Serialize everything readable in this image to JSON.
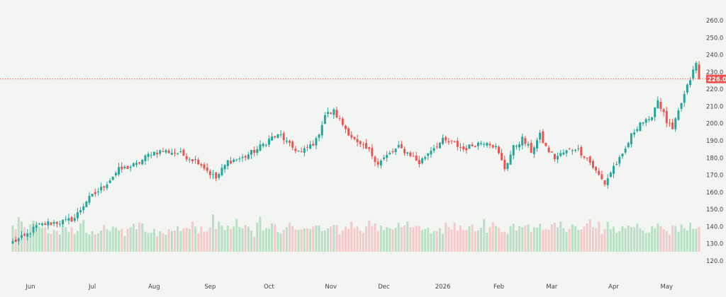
{
  "colors": {
    "background": "#f2f5f2",
    "up": "#26a69a",
    "down": "#ef5350",
    "up_volume": "#b9dfc4",
    "down_volume": "#f6c9c9",
    "price_line": "#ef5350",
    "axis_text": "#444444"
  },
  "chart_data": {
    "type": "candlestick",
    "y_axis": {
      "position": "right",
      "range": [
        115,
        265
      ],
      "ticks": [
        "120.0",
        "130.0",
        "140.0",
        "150.0",
        "160.0",
        "170.0",
        "180.0",
        "190.0",
        "200.0",
        "210.0",
        "220.0",
        "230.0",
        "240.0",
        "250.0",
        "260.0"
      ],
      "tick_values": [
        120,
        130,
        140,
        150,
        160,
        170,
        180,
        190,
        200,
        210,
        220,
        230,
        240,
        250,
        260
      ]
    },
    "x_axis": {
      "labels": [
        "Jun",
        "Jul",
        "Aug",
        "Sep",
        "Oct",
        "Nov",
        "Dec",
        "2026",
        "Feb",
        "Mar",
        "Apr",
        "May"
      ],
      "label_bar_index": [
        6,
        27,
        48,
        67,
        87,
        108,
        126,
        146,
        165,
        183,
        204,
        222
      ]
    },
    "last_price": {
      "value": 226.0,
      "label": "226.0"
    },
    "volume_band": {
      "range_low": 0,
      "range_high": 100
    },
    "bar_count": 234,
    "trend_anchors": [
      [
        0,
        131
      ],
      [
        4,
        134
      ],
      [
        8,
        140
      ],
      [
        12,
        142
      ],
      [
        18,
        143
      ],
      [
        21,
        145
      ],
      [
        25,
        155
      ],
      [
        30,
        162
      ],
      [
        36,
        173
      ],
      [
        42,
        176
      ],
      [
        47,
        183
      ],
      [
        51,
        184
      ],
      [
        56,
        183
      ],
      [
        60,
        180
      ],
      [
        63,
        178
      ],
      [
        67,
        171
      ],
      [
        69,
        168
      ],
      [
        73,
        178
      ],
      [
        78,
        180
      ],
      [
        83,
        185
      ],
      [
        88,
        192
      ],
      [
        91,
        193
      ],
      [
        94,
        187
      ],
      [
        98,
        183
      ],
      [
        103,
        190
      ],
      [
        106,
        205
      ],
      [
        109,
        207
      ],
      [
        113,
        197
      ],
      [
        117,
        188
      ],
      [
        121,
        184
      ],
      [
        124,
        177
      ],
      [
        127,
        181
      ],
      [
        131,
        186
      ],
      [
        135,
        182
      ],
      [
        138,
        177
      ],
      [
        142,
        185
      ],
      [
        146,
        190
      ],
      [
        150,
        188
      ],
      [
        153,
        185
      ],
      [
        157,
        188
      ],
      [
        161,
        190
      ],
      [
        164,
        186
      ],
      [
        167,
        174
      ],
      [
        170,
        186
      ],
      [
        173,
        191
      ],
      [
        176,
        184
      ],
      [
        179,
        193
      ],
      [
        181,
        186
      ],
      [
        184,
        180
      ],
      [
        187,
        183
      ],
      [
        191,
        186
      ],
      [
        195,
        180
      ],
      [
        198,
        172
      ],
      [
        201,
        165
      ],
      [
        204,
        175
      ],
      [
        207,
        181
      ],
      [
        210,
        193
      ],
      [
        213,
        201
      ],
      [
        216,
        201
      ],
      [
        219,
        214
      ],
      [
        222,
        201
      ],
      [
        224,
        196
      ],
      [
        227,
        212
      ],
      [
        230,
        226
      ],
      [
        232,
        235
      ],
      [
        233,
        226
      ]
    ],
    "volume_values": [
      47,
      40,
      62,
      54,
      44,
      33,
      49,
      56,
      51,
      45,
      43,
      44,
      33,
      32,
      39,
      37,
      31,
      46,
      44,
      35,
      44,
      32,
      37,
      51,
      57,
      34,
      31,
      37,
      31,
      33,
      38,
      48,
      40,
      37,
      45,
      43,
      38,
      41,
      28,
      41,
      44,
      50,
      40,
      52,
      51,
      36,
      34,
      34,
      41,
      28,
      37,
      33,
      30,
      40,
      37,
      38,
      46,
      37,
      42,
      43,
      41,
      54,
      45,
      33,
      45,
      36,
      37,
      44,
      67,
      41,
      54,
      47,
      39,
      47,
      41,
      45,
      59,
      44,
      42,
      48,
      45,
      38,
      27,
      52,
      63,
      38,
      42,
      41,
      51,
      49,
      35,
      33,
      39,
      44,
      52,
      46,
      40,
      39,
      40,
      42,
      42,
      41,
      45,
      47,
      47,
      37,
      38,
      42,
      45,
      48,
      48,
      31,
      38,
      45,
      41,
      54,
      42,
      45,
      38,
      34,
      45,
      56,
      46,
      51,
      37,
      47,
      39,
      44,
      42,
      40,
      43,
      52,
      44,
      47,
      54,
      44,
      44,
      46,
      46,
      39,
      41,
      43,
      33,
      37,
      37,
      42,
      32,
      52,
      44,
      40,
      52,
      38,
      47,
      39,
      39,
      46,
      49,
      37,
      38,
      43,
      59,
      34,
      44,
      53,
      46,
      43,
      35,
      36,
      32,
      46,
      50,
      38,
      46,
      44,
      47,
      49,
      36,
      44,
      43,
      50,
      39,
      40,
      39,
      49,
      52,
      44,
      54,
      42,
      35,
      41,
      49,
      46,
      39,
      40,
      45,
      51,
      58,
      44,
      42,
      54,
      32,
      41,
      53,
      40,
      45,
      34,
      37,
      46,
      42,
      47,
      44,
      44,
      50,
      42,
      38,
      33,
      34,
      46,
      42,
      51,
      46,
      40,
      37,
      31,
      47,
      46,
      36,
      49,
      42,
      38,
      52,
      41,
      41,
      44
    ]
  }
}
